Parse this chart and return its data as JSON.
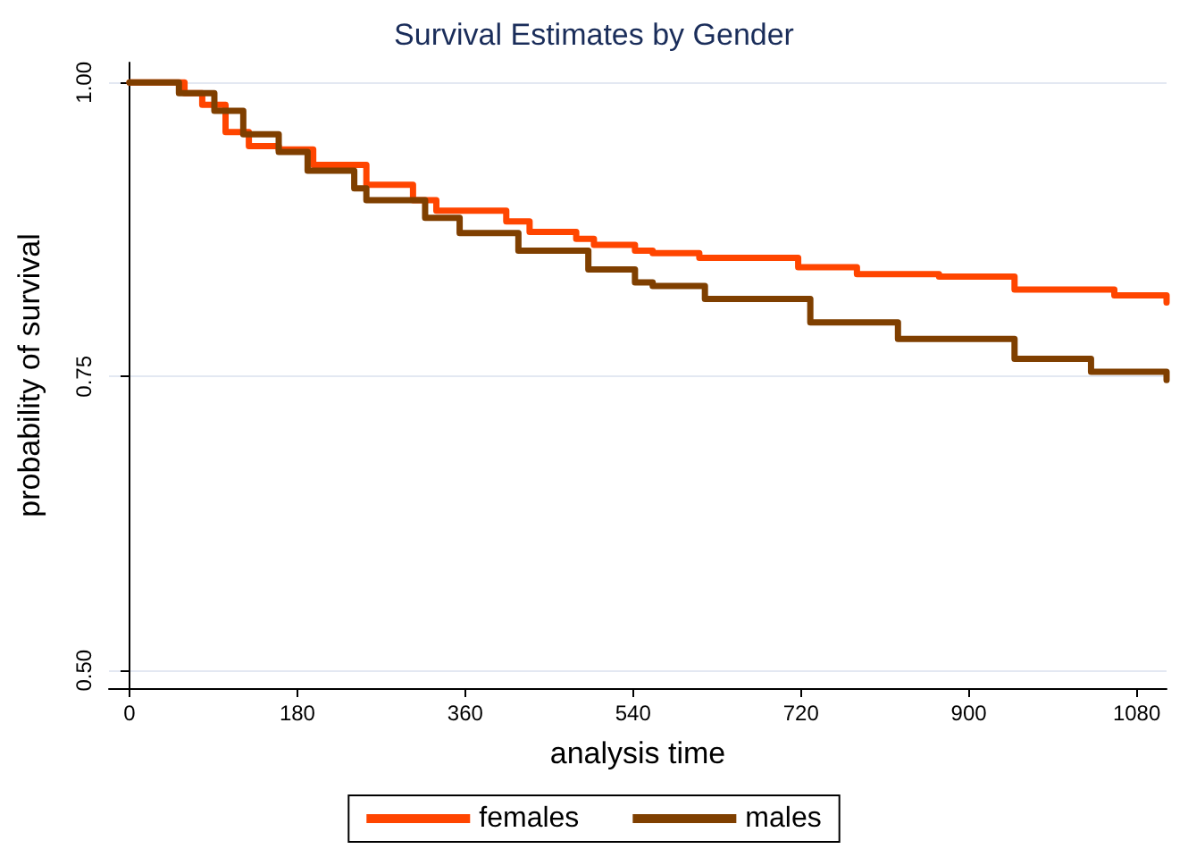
{
  "chart_data": {
    "type": "step",
    "title": "Survival Estimates by Gender",
    "xlabel": "analysis time",
    "ylabel": "probability of survival",
    "xlim": [
      -22,
      1112
    ],
    "xticks": [
      0,
      180,
      360,
      540,
      720,
      900,
      1080
    ],
    "ylim": [
      0.485,
      1.017
    ],
    "yticks": [
      {
        "value": 0.5,
        "label": "0.50"
      },
      {
        "value": 0.75,
        "label": "0.75"
      },
      {
        "value": 1,
        "label": "1.00"
      }
    ],
    "grid": "y",
    "legend": "bottom",
    "marker": "none",
    "line_style": "solid",
    "series": [
      {
        "name": "females",
        "color": "#ff4500",
        "x": [
          0,
          59,
          78,
          103,
          128,
          160,
          197,
          254,
          304,
          329,
          404,
          429,
          479,
          498,
          542,
          561,
          611,
          717,
          780,
          868,
          949,
          1056,
          1112
        ],
        "values": [
          1.0,
          0.991,
          0.981,
          0.958,
          0.946,
          0.943,
          0.93,
          0.913,
          0.9,
          0.891,
          0.882,
          0.873,
          0.867,
          0.862,
          0.857,
          0.855,
          0.851,
          0.843,
          0.837,
          0.835,
          0.824,
          0.819,
          0.813
        ]
      },
      {
        "name": "males",
        "color": "#7f3f00",
        "x": [
          0,
          53,
          91,
          122,
          160,
          191,
          241,
          254,
          317,
          354,
          417,
          492,
          542,
          561,
          617,
          730,
          824,
          949,
          1031,
          1112
        ],
        "values": [
          1.0,
          0.991,
          0.976,
          0.956,
          0.941,
          0.925,
          0.91,
          0.9,
          0.885,
          0.872,
          0.857,
          0.841,
          0.83,
          0.827,
          0.816,
          0.796,
          0.782,
          0.765,
          0.754,
          0.747
        ]
      }
    ]
  }
}
